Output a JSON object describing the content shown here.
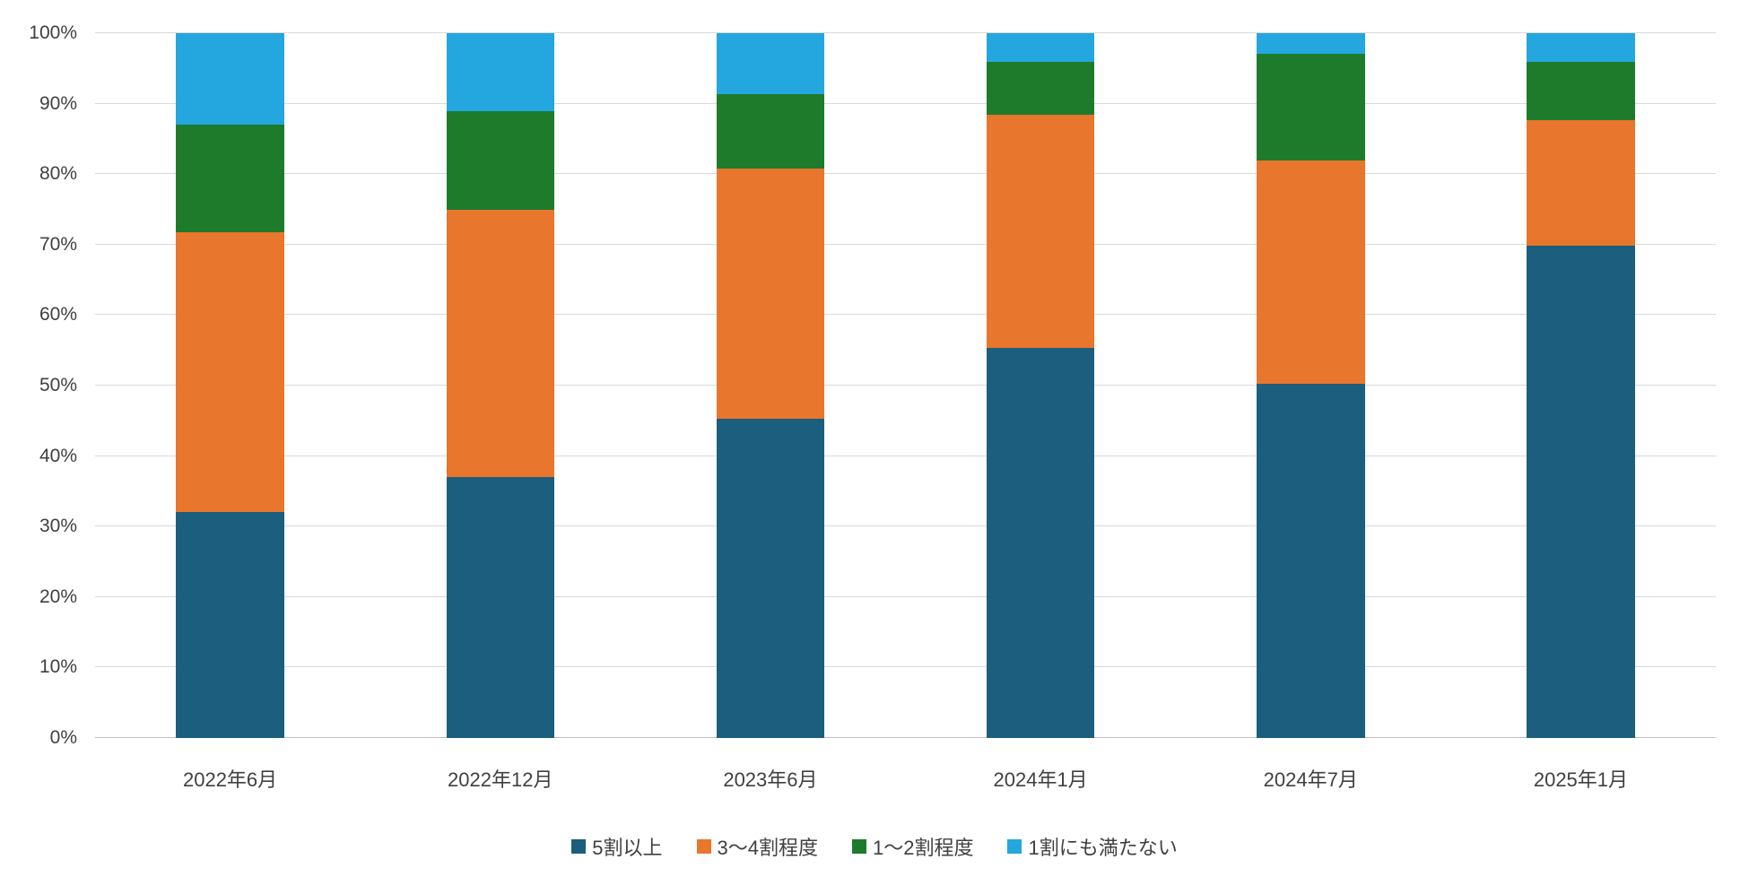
{
  "chart_data": {
    "type": "bar",
    "stacked": true,
    "percent_stacked": true,
    "title": "",
    "xlabel": "",
    "ylabel": "",
    "ylim": [
      0,
      100
    ],
    "grid": true,
    "legend_position": "bottom",
    "y_ticks": [
      "0%",
      "10%",
      "20%",
      "30%",
      "40%",
      "50%",
      "60%",
      "70%",
      "80%",
      "90%",
      "100%"
    ],
    "categories": [
      "2022年6月",
      "2022年12月",
      "2023年6月",
      "2024年1月",
      "2024年7月",
      "2025年1月"
    ],
    "series": [
      {
        "name": "5割以上",
        "color": "#1b5e7d",
        "values": [
          32.0,
          37.0,
          45.3,
          55.4,
          50.2,
          69.8
        ]
      },
      {
        "name": "3〜4割程度",
        "color": "#e8762c",
        "values": [
          39.8,
          37.9,
          35.5,
          33.0,
          31.8,
          17.9
        ]
      },
      {
        "name": "1〜2割程度",
        "color": "#1e7b2c",
        "values": [
          15.2,
          14.0,
          10.5,
          7.5,
          15.1,
          8.2
        ]
      },
      {
        "name": "1割にも満たない",
        "color": "#24a7de",
        "values": [
          13.0,
          11.1,
          8.7,
          4.1,
          2.9,
          4.1
        ]
      }
    ],
    "colors": {
      "gridline": "#d9d9d9",
      "axis_line": "#bfbfbf",
      "text": "#404040",
      "background": "#ffffff"
    }
  }
}
